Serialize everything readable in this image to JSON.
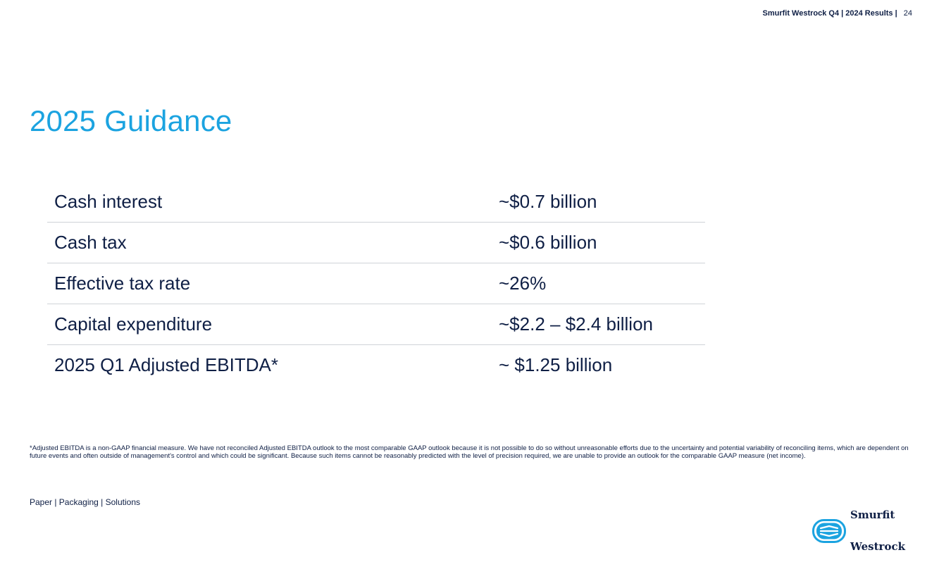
{
  "header": {
    "brand_text": "Smurfit Westrock Q4 | 2024 Results |",
    "page_number": "24"
  },
  "title": "2025 Guidance",
  "guidance": {
    "rows": [
      {
        "label": "Cash interest",
        "value": "~$0.7 billion"
      },
      {
        "label": "Cash tax",
        "value": "~$0.6 billion"
      },
      {
        "label": "Effective tax rate",
        "value": "~26%"
      },
      {
        "label": "Capital expenditure",
        "value": "~$2.2 – $2.4 billion"
      },
      {
        "label": "2025 Q1 Adjusted EBITDA*",
        "value": "~ $1.25 billion"
      }
    ]
  },
  "footnote": "*Adjusted EBITDA is a non-GAAP financial measure. We have not reconciled Adjusted EBITDA outlook to the most comparable GAAP outlook because it is not possible to do so without unreasonable efforts due to the uncertainty and potential variability of reconciling items, which are dependent on future events and often outside of management's control and which could be significant. Because such items cannot be reasonably predicted with the level of precision required, we are unable to provide an outlook for the comparable GAAP measure (net income).",
  "footer": {
    "tagline": "Paper  |  Packaging  |  Solutions"
  },
  "logo": {
    "line1": "Smurfit",
    "line2": "Westrock",
    "icon": "smurfit-westrock-mark-icon"
  },
  "colors": {
    "accent": "#1ba3e0",
    "text": "#0f1f45",
    "divider": "#cfd3d8"
  }
}
